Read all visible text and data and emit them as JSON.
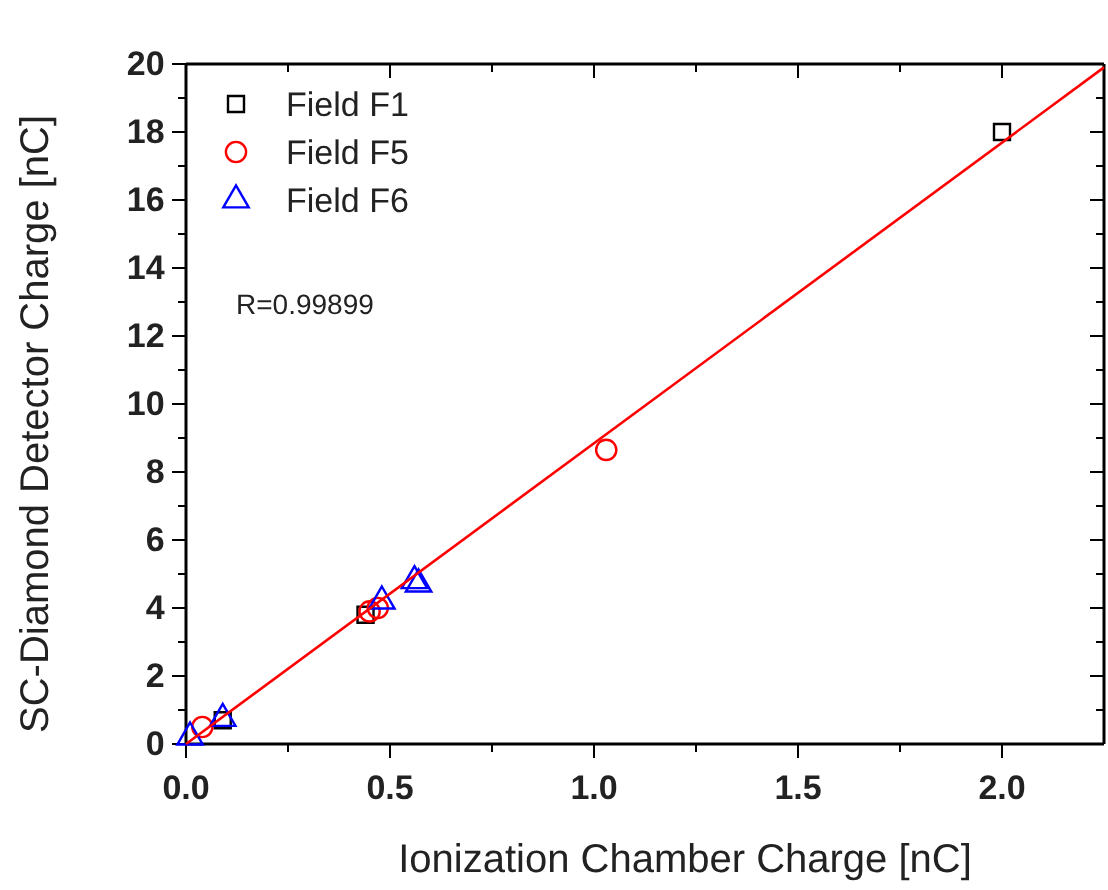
{
  "chart_data": {
    "type": "scatter",
    "xlabel": "Ionization Chamber Charge [nC]",
    "ylabel": "SC-Diamond Detector Charge [nC]",
    "xlim": [
      0,
      2.25
    ],
    "ylim": [
      0,
      20
    ],
    "xticks": [
      {
        "value": 0,
        "label": "0.0"
      },
      {
        "value": 0.25,
        "label": null
      },
      {
        "value": 0.5,
        "label": "0.5"
      },
      {
        "value": 0.75,
        "label": null
      },
      {
        "value": 1,
        "label": "1.0"
      },
      {
        "value": 1.25,
        "label": null
      },
      {
        "value": 1.5,
        "label": "1.5"
      },
      {
        "value": 1.75,
        "label": null
      },
      {
        "value": 2,
        "label": "2.0"
      }
    ],
    "yticks": [
      0,
      {
        "value": 1,
        "label": null
      },
      2,
      {
        "value": 3,
        "label": null
      },
      4,
      {
        "value": 5,
        "label": null
      },
      6,
      {
        "value": 7,
        "label": null
      },
      8,
      {
        "value": 9,
        "label": null
      },
      10,
      {
        "value": 11,
        "label": null
      },
      12,
      {
        "value": 13,
        "label": null
      },
      14,
      {
        "value": 15,
        "label": null
      },
      16,
      {
        "value": 17,
        "label": null
      },
      18,
      {
        "value": 19,
        "label": null
      },
      20
    ],
    "grid": false,
    "legend": "top left",
    "annotations": [
      "R=0.99899"
    ],
    "series": [
      {
        "name": "Field F1",
        "color": "#000000",
        "marker": "square",
        "x": [
          0.09,
          0.44,
          2.0
        ],
        "values": [
          0.7,
          3.8,
          18.0
        ]
      },
      {
        "name": "Field F5",
        "color": "#ff0000",
        "marker": "circle",
        "x": [
          0.04,
          0.45,
          0.47,
          1.03
        ],
        "values": [
          0.5,
          3.9,
          4.0,
          8.65
        ]
      },
      {
        "name": "Field F6",
        "color": "#0000ff",
        "marker": "triangle",
        "x": [
          0.01,
          0.09,
          0.48,
          0.56,
          0.57
        ],
        "values": [
          0.2,
          0.75,
          4.2,
          4.8,
          4.7
        ]
      },
      {
        "type": "line",
        "color": "#ff0000",
        "marker": "none",
        "x": [
          0,
          2.25
        ],
        "values": [
          0,
          19.9
        ]
      }
    ]
  }
}
